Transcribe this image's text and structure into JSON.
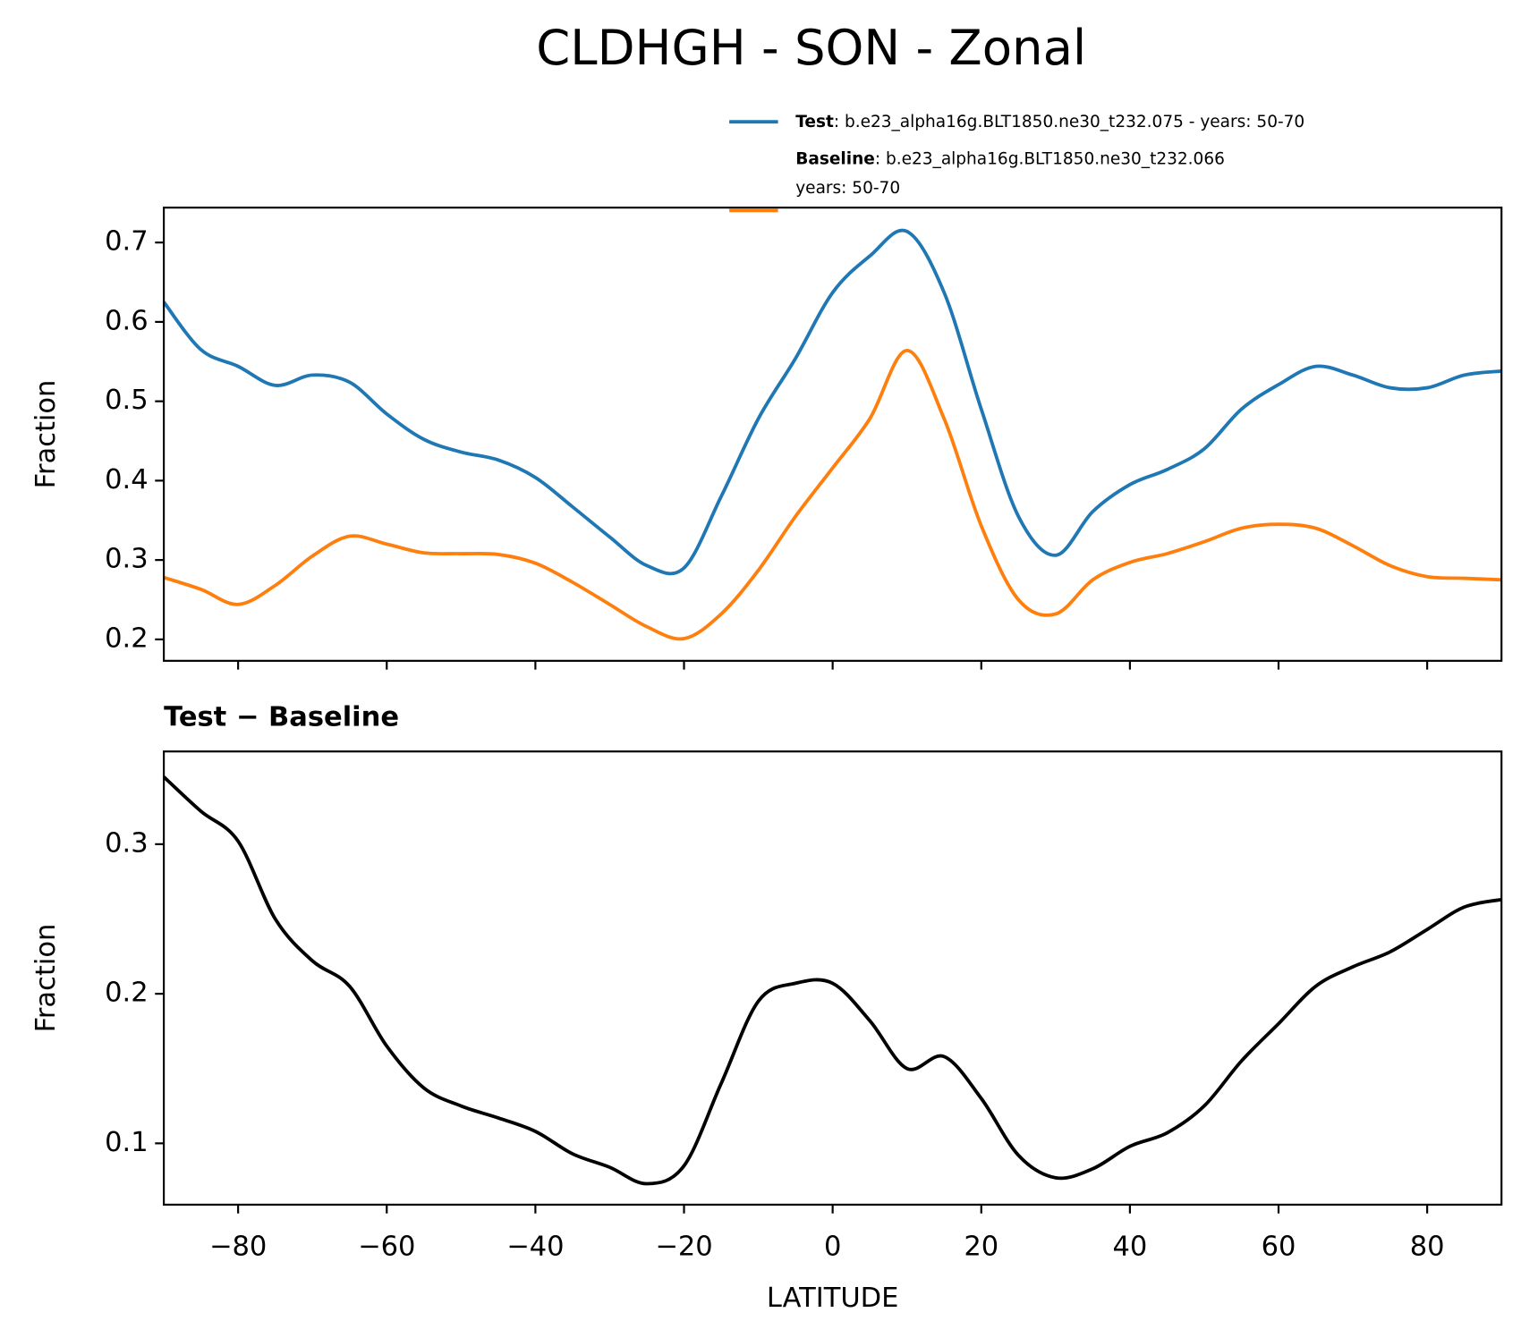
{
  "title": "CLDHGH - SON - Zonal",
  "chart_data": [
    {
      "type": "line",
      "ylabel": "Fraction",
      "x": [
        -90,
        -85,
        -80,
        -75,
        -70,
        -65,
        -60,
        -55,
        -50,
        -45,
        -40,
        -35,
        -30,
        -25,
        -20,
        -15,
        -10,
        -5,
        0,
        5,
        10,
        15,
        20,
        25,
        30,
        35,
        40,
        45,
        50,
        55,
        60,
        65,
        70,
        75,
        80,
        85,
        90
      ],
      "series": [
        {
          "name": "Test",
          "description": [
            ": b.e23_alpha16g.BLT1850.ne30_t232.075 - years: 50-70"
          ],
          "color": "#1f77b4",
          "values": [
            0.625,
            0.565,
            0.544,
            0.52,
            0.533,
            0.524,
            0.484,
            0.452,
            0.436,
            0.426,
            0.404,
            0.367,
            0.329,
            0.293,
            0.29,
            0.38,
            0.478,
            0.554,
            0.637,
            0.683,
            0.714,
            0.637,
            0.49,
            0.355,
            0.306,
            0.361,
            0.395,
            0.414,
            0.44,
            0.49,
            0.521,
            0.544,
            0.533,
            0.517,
            0.517,
            0.533,
            0.538
          ]
        },
        {
          "name": "Baseline",
          "description": [
            ": b.e23_alpha16g.BLT1850.ne30_t232.066",
            "years: 50-70"
          ],
          "color": "#ff7f0e",
          "values": [
            0.278,
            0.263,
            0.244,
            0.268,
            0.305,
            0.33,
            0.32,
            0.309,
            0.308,
            0.307,
            0.296,
            0.272,
            0.244,
            0.216,
            0.201,
            0.232,
            0.287,
            0.355,
            0.416,
            0.478,
            0.564,
            0.478,
            0.343,
            0.25,
            0.232,
            0.275,
            0.297,
            0.308,
            0.323,
            0.34,
            0.345,
            0.34,
            0.318,
            0.293,
            0.279,
            0.277,
            0.275
          ]
        }
      ],
      "xlim": [
        -90,
        90
      ],
      "xticks": [
        -80,
        -60,
        -40,
        -20,
        0,
        20,
        40,
        60,
        80
      ],
      "ylim": [
        0.173,
        0.744
      ],
      "yticks": [
        0.2,
        0.3,
        0.4,
        0.5,
        0.6,
        0.7
      ]
    },
    {
      "type": "line",
      "title": "Test − Baseline",
      "xlabel": "LATITUDE",
      "ylabel": "Fraction",
      "x": [
        -90,
        -85,
        -80,
        -75,
        -70,
        -65,
        -60,
        -55,
        -50,
        -45,
        -40,
        -35,
        -30,
        -25,
        -20,
        -15,
        -10,
        -5,
        0,
        5,
        10,
        15,
        20,
        25,
        30,
        35,
        40,
        45,
        50,
        55,
        60,
        65,
        70,
        75,
        80,
        85,
        90
      ],
      "series": [
        {
          "color": "#000000",
          "values": [
            0.345,
            0.322,
            0.302,
            0.25,
            0.222,
            0.205,
            0.165,
            0.137,
            0.125,
            0.117,
            0.108,
            0.093,
            0.084,
            0.073,
            0.085,
            0.14,
            0.195,
            0.207,
            0.207,
            0.182,
            0.15,
            0.158,
            0.13,
            0.092,
            0.077,
            0.083,
            0.098,
            0.107,
            0.125,
            0.155,
            0.18,
            0.205,
            0.218,
            0.228,
            0.243,
            0.258,
            0.263
          ]
        }
      ],
      "xlim": [
        -90,
        90
      ],
      "xticks": [
        -80,
        -60,
        -40,
        -20,
        0,
        20,
        40,
        60,
        80
      ],
      "ylim": [
        0.059,
        0.362
      ],
      "yticks": [
        0.1,
        0.2,
        0.3
      ]
    }
  ]
}
